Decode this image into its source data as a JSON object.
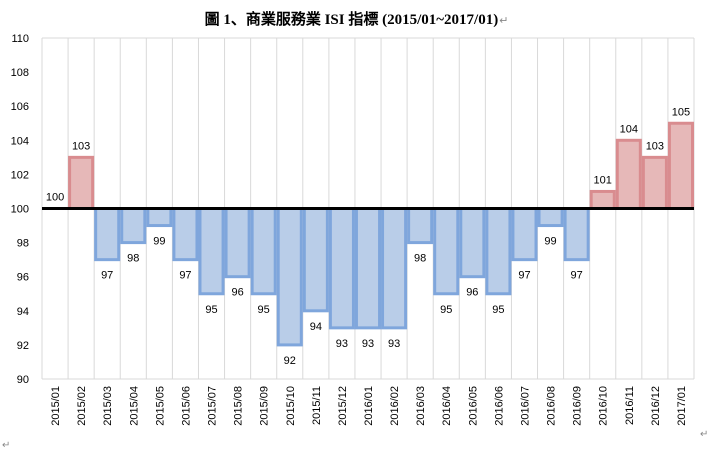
{
  "chart_data": {
    "type": "bar",
    "title": "圖 1、商業服務業 ISI 指標 (2015/01~2017/01)",
    "baseline": 100,
    "ylim": [
      90,
      110
    ],
    "yticks": [
      90,
      92,
      94,
      96,
      98,
      100,
      102,
      104,
      106,
      108,
      110
    ],
    "grid": "vertical",
    "categories": [
      "2015/01",
      "2015/02",
      "2015/03",
      "2015/04",
      "2015/05",
      "2015/06",
      "2015/07",
      "2015/08",
      "2015/09",
      "2015/10",
      "2015/11",
      "2015/12",
      "2016/01",
      "2016/02",
      "2016/03",
      "2016/04",
      "2016/05",
      "2016/06",
      "2016/07",
      "2016/08",
      "2016/09",
      "2016/10",
      "2016/11",
      "2016/12",
      "2017/01"
    ],
    "values": [
      100,
      103,
      97,
      98,
      99,
      97,
      95,
      96,
      95,
      92,
      94,
      93,
      93,
      93,
      98,
      95,
      96,
      95,
      97,
      99,
      97,
      101,
      104,
      103,
      105
    ],
    "colors": {
      "above_fill": "#e6b8b8",
      "above_stroke": "#d98c8f",
      "below_fill": "#b9cde8",
      "below_stroke": "#7fa6dc",
      "baseline": "#000000",
      "grid": "#d9d9d9"
    }
  },
  "marks": {
    "title_end": "↵",
    "page_end": "↵"
  }
}
